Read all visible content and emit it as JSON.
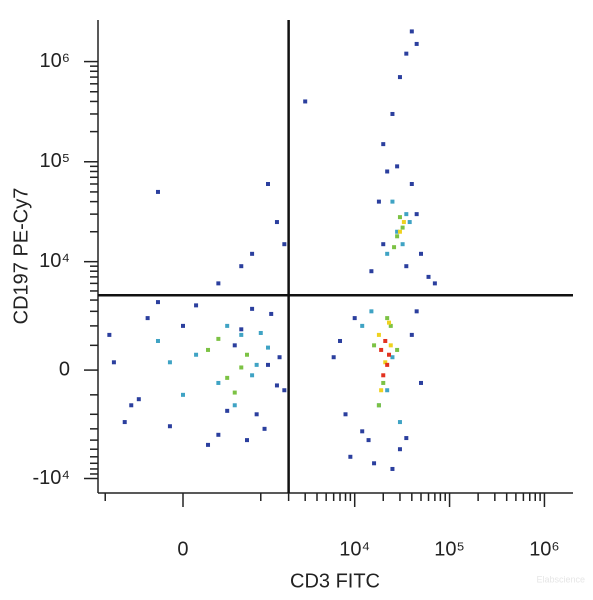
{
  "chart_data": {
    "type": "scatter",
    "xlabel": "CD3 FITC",
    "ylabel": "CD197 PE-Cy7",
    "watermark": "Elabscience",
    "xscale": "arcsinh",
    "xcofactor": 310,
    "yscale": "arcsinh",
    "ycofactor": 1667,
    "xlim": [
      -1200,
      2000000
    ],
    "ylim": [
      -14000,
      2600000
    ],
    "xticks": [
      {
        "value": 0,
        "label": "0"
      },
      {
        "value": 10000,
        "label": "10⁴"
      },
      {
        "value": 100000,
        "label": "10⁵"
      },
      {
        "value": 1000000,
        "label": "10⁶"
      }
    ],
    "yticks": [
      {
        "value": -10000,
        "label": "-10⁴"
      },
      {
        "value": 0,
        "label": "0"
      },
      {
        "value": 10000,
        "label": "10⁴"
      },
      {
        "value": 100000,
        "label": "10⁵"
      },
      {
        "value": 1000000,
        "label": "10⁶"
      }
    ],
    "xminor": [
      -1000,
      1000,
      2000,
      3000,
      4000,
      5000,
      6000,
      7000,
      8000,
      9000,
      20000,
      30000,
      40000,
      50000,
      60000,
      70000,
      80000,
      90000,
      200000,
      300000,
      400000,
      500000,
      600000,
      700000,
      800000,
      900000
    ],
    "yminor": [
      -9000,
      -8000,
      -7000,
      -6000,
      -5000,
      -4000,
      -3000,
      -2000,
      -1000,
      1000,
      2000,
      3000,
      4000,
      5000,
      6000,
      7000,
      8000,
      9000,
      20000,
      30000,
      40000,
      50000,
      60000,
      70000,
      80000,
      90000,
      200000,
      300000,
      400000,
      500000,
      600000,
      700000,
      800000,
      900000
    ],
    "quadrant_x": 2000,
    "quadrant_y": 4500,
    "series": [
      {
        "color": "#2b3f9e",
        "x": [
          -800,
          -500,
          -300,
          -100,
          100,
          300,
          600,
          900,
          1300,
          1800,
          -600,
          -200,
          200,
          500,
          1100,
          1600,
          -400,
          0,
          400,
          800,
          1500,
          -900,
          700,
          1200,
          6000,
          8000,
          10000,
          14000,
          40000,
          50000,
          9000,
          45000,
          12000,
          35000,
          16000,
          25000,
          30000,
          7000,
          15000,
          18000,
          40000,
          50000,
          22000,
          45000,
          20000,
          35000,
          28000,
          60000,
          300,
          800,
          1500,
          1200,
          600,
          1800,
          25000,
          30000,
          35000,
          40000,
          20000,
          45000,
          -200,
          3000,
          70000
        ],
        "values": [
          300,
          -1500,
          2500,
          -2800,
          3500,
          -3500,
          1800,
          -2000,
          2800,
          -800,
          -2500,
          3800,
          -4500,
          1000,
          -3000,
          500,
          -1200,
          2000,
          -1800,
          3200,
          -600,
          1500,
          -4000,
          200,
          500,
          -2000,
          2500,
          -4000,
          1500,
          -500,
          -6000,
          3000,
          -3200,
          -3800,
          -7000,
          -8000,
          -5000,
          1200,
          8000,
          40000,
          60000,
          12000,
          80000,
          30000,
          15000,
          9000,
          90000,
          7000,
          6000,
          12000,
          25000,
          60000,
          9000,
          15000,
          300000,
          700000,
          1200000,
          2000000,
          150000,
          1500000,
          50000,
          400000,
          6000
        ]
      },
      {
        "color": "#3fa3c4",
        "x": [
          -200,
          100,
          300,
          600,
          900,
          1200,
          0,
          400,
          800,
          -100,
          500,
          1000,
          12000,
          18000,
          25000,
          30000,
          15000,
          22000,
          22000,
          28000,
          35000,
          25000,
          32000,
          38000
        ],
        "values": [
          1200,
          600,
          -500,
          1500,
          200,
          900,
          -1000,
          2000,
          -200,
          300,
          -1500,
          1600,
          2000,
          -1500,
          500,
          -2500,
          3000,
          -800,
          12000,
          20000,
          30000,
          40000,
          15000,
          25000
        ]
      },
      {
        "color": "#7cc244",
        "x": [
          200,
          400,
          700,
          300,
          600,
          500,
          16000,
          20000,
          24000,
          18000,
          28000,
          22000,
          28000,
          32000,
          30000,
          26000
        ],
        "values": [
          800,
          -300,
          600,
          1300,
          100,
          -900,
          1000,
          -500,
          2000,
          -1500,
          800,
          2500,
          18000,
          22000,
          28000,
          14000
        ]
      },
      {
        "color": "#efd21f",
        "x": [
          18000,
          21000,
          24000,
          19000,
          23000,
          30000,
          33000
        ],
        "values": [
          1500,
          300,
          1000,
          -800,
          2200,
          20000,
          25000
        ]
      },
      {
        "color": "#e2321f",
        "x": [
          19000,
          21000,
          22000,
          20000,
          23000
        ],
        "values": [
          800,
          1200,
          200,
          -200,
          600
        ]
      }
    ]
  }
}
